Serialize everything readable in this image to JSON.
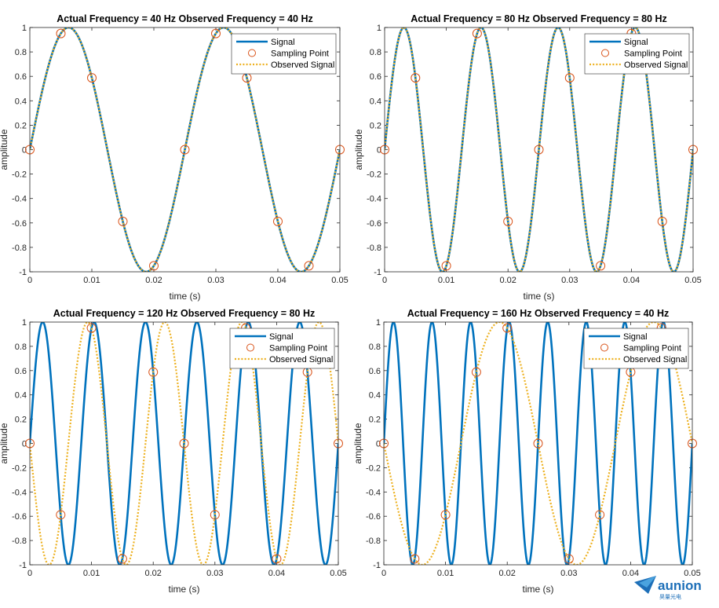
{
  "chart_data": [
    {
      "type": "line",
      "title": "Actual Frequency = 40 Hz Observed Frequency = 40 Hz",
      "xlabel": "time (s)",
      "ylabel": "amplitude",
      "xlim": [
        0,
        0.05
      ],
      "ylim": [
        -1,
        1
      ],
      "xticks": [
        "0",
        "0.01",
        "0.02",
        "0.03",
        "0.04",
        "0.05"
      ],
      "yticks": [
        "1",
        "0.8",
        "0.6",
        "0.4",
        "0.2",
        "0",
        "-0.2",
        "-0.4",
        "-0.6",
        "-0.8",
        "-1"
      ],
      "actual_frequency_hz": 40,
      "observed_frequency_hz": 40,
      "sampling_interval_s": 0.005,
      "series": [
        {
          "name": "Signal",
          "style": "solid",
          "color": "#0072BD"
        },
        {
          "name": "Sampling Point",
          "style": "circle",
          "color": "#D95319"
        },
        {
          "name": "Observed Signal",
          "style": "dotted",
          "color": "#EDB120"
        }
      ],
      "legend_position": "top-right"
    },
    {
      "type": "line",
      "title": "Actual Frequency = 80 Hz Observed Frequency = 80 Hz",
      "xlabel": "time (s)",
      "ylabel": "amplitude",
      "xlim": [
        0,
        0.05
      ],
      "ylim": [
        -1,
        1
      ],
      "xticks": [
        "0",
        "0.01",
        "0.02",
        "0.03",
        "0.04",
        "0.05"
      ],
      "yticks": [
        "1",
        "0.8",
        "0.6",
        "0.4",
        "0.2",
        "0",
        "-0.2",
        "-0.4",
        "-0.6",
        "-0.8",
        "-1"
      ],
      "actual_frequency_hz": 80,
      "observed_frequency_hz": 80,
      "sampling_interval_s": 0.005,
      "series": [
        {
          "name": "Signal",
          "style": "solid",
          "color": "#0072BD"
        },
        {
          "name": "Sampling Point",
          "style": "circle",
          "color": "#D95319"
        },
        {
          "name": "Observed Signal",
          "style": "dotted",
          "color": "#EDB120"
        }
      ],
      "legend_position": "top-right"
    },
    {
      "type": "line",
      "title": "Actual Frequency = 120 Hz Observed Frequency = 80 Hz",
      "xlabel": "time (s)",
      "ylabel": "amplitude",
      "xlim": [
        0,
        0.05
      ],
      "ylim": [
        -1,
        1
      ],
      "xticks": [
        "0",
        "0.01",
        "0.02",
        "0.03",
        "0.04",
        "0.05"
      ],
      "yticks": [
        "1",
        "0.8",
        "0.6",
        "0.4",
        "0.2",
        "0",
        "-0.2",
        "-0.4",
        "-0.6",
        "-0.8",
        "-1"
      ],
      "actual_frequency_hz": 120,
      "observed_frequency_hz": 80,
      "sampling_interval_s": 0.005,
      "series": [
        {
          "name": "Signal",
          "style": "solid",
          "color": "#0072BD"
        },
        {
          "name": "Sampling Point",
          "style": "circle",
          "color": "#D95319"
        },
        {
          "name": "Observed Signal",
          "style": "dotted",
          "color": "#EDB120"
        }
      ],
      "legend_position": "top-right"
    },
    {
      "type": "line",
      "title": "Actual Frequency = 160 Hz Observed Frequency = 40 Hz",
      "xlabel": "time (s)",
      "ylabel": "amplitude",
      "xlim": [
        0,
        0.05
      ],
      "ylim": [
        -1,
        1
      ],
      "xticks": [
        "0",
        "0.01",
        "0.02",
        "0.03",
        "0.04",
        "0.05"
      ],
      "yticks": [
        "1",
        "0.8",
        "0.6",
        "0.4",
        "0.2",
        "0",
        "-0.2",
        "-0.4",
        "-0.6",
        "-0.8",
        "-1"
      ],
      "actual_frequency_hz": 160,
      "observed_frequency_hz": 40,
      "sampling_interval_s": 0.005,
      "series": [
        {
          "name": "Signal",
          "style": "solid",
          "color": "#0072BD"
        },
        {
          "name": "Sampling Point",
          "style": "circle",
          "color": "#D95319"
        },
        {
          "name": "Observed Signal",
          "style": "dotted",
          "color": "#EDB120"
        }
      ],
      "legend_position": "top-right"
    }
  ],
  "watermark": {
    "brand": "aunion",
    "subtitle": "昊量光电",
    "logo_icon": "paper-plane-logo-icon"
  }
}
